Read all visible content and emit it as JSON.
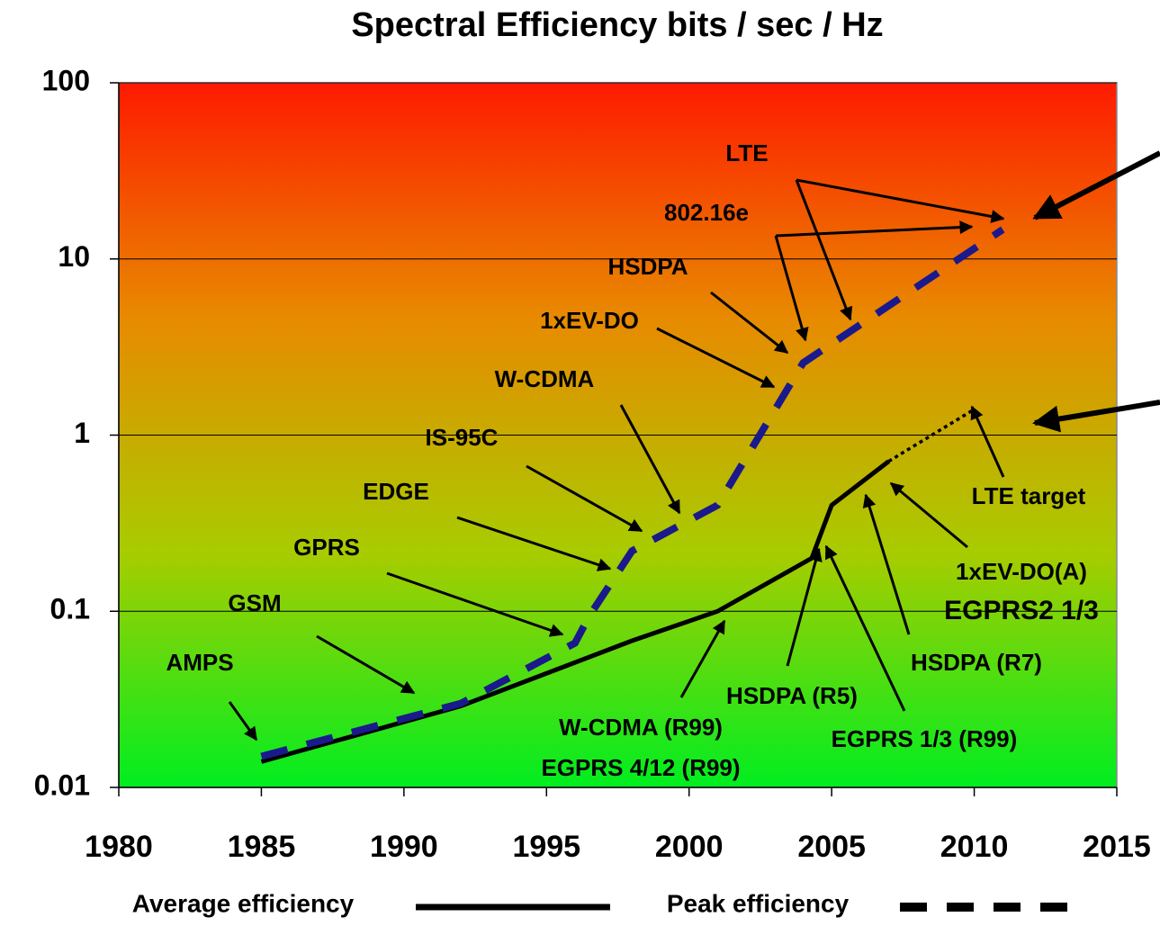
{
  "chart_data": {
    "type": "line",
    "title": "Spectral Efficiency bits / sec / Hz",
    "log_y": true,
    "grid": true,
    "xlim": [
      1980,
      2015
    ],
    "xticks": [
      1980,
      1985,
      1990,
      1995,
      2000,
      2005,
      2010,
      2015
    ],
    "ylim": [
      0.01,
      100
    ],
    "yticks": [
      0.01,
      0.1,
      1,
      10,
      100
    ],
    "background": [
      "#ff1a00",
      "#e88a00",
      "#a8cc00",
      "#00ee20"
    ],
    "series": [
      {
        "name": "Average efficiency",
        "color": "#000000",
        "style": "solid",
        "x": [
          1985,
          1992,
          1998,
          2001,
          2004.3,
          2005,
          2007
        ],
        "values": [
          0.014,
          0.029,
          0.068,
          0.1,
          0.2,
          0.4,
          0.71
        ]
      },
      {
        "name": "Peak efficiency",
        "color": "#1a1a8c",
        "style": "dashed",
        "x": [
          1985,
          1992,
          1996,
          1996.5,
          1998,
          2001,
          2004,
          2011
        ],
        "values": [
          0.015,
          0.03,
          0.066,
          0.094,
          0.22,
          0.4,
          2.57,
          14.7
        ]
      },
      {
        "color": "#000000",
        "style": "dotted",
        "x": [
          2007,
          2010
        ],
        "values": [
          0.71,
          1.4
        ]
      }
    ],
    "annotations": [
      "LTE",
      "802.16e",
      "HSDPA",
      "1xEV-DO",
      "W-CDMA",
      "IS-95C",
      "EDGE",
      "GPRS",
      "GSM",
      "AMPS",
      "W-CDMA (R99)",
      "EGPRS 4/12 (R99)",
      "HSDPA (R5)",
      "EGPRS 1/3 (R99)",
      "HSDPA (R7)",
      "1xEV-DO(A)",
      "EGPRS2 1/3",
      "LTE target"
    ]
  }
}
